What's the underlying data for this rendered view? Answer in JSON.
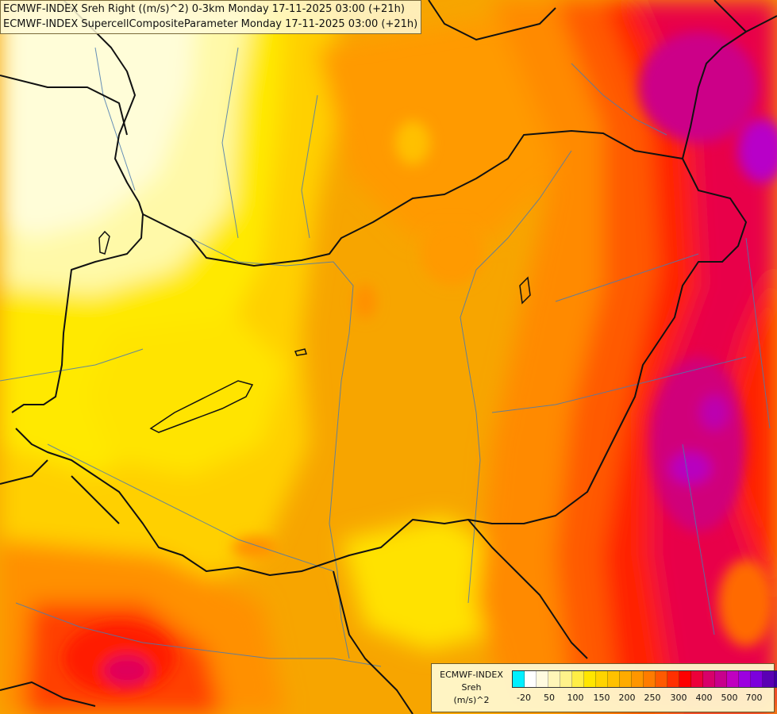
{
  "titles": {
    "line1": "ECMWF-INDEX Sreh Right ((m/s)^2) 0-3km Monday 17-11-2025 03:00 (+21h)",
    "line2": "ECMWF-INDEX SupercellCompositeParameter Monday 17-11-2025 03:00 (+21h)"
  },
  "legend": {
    "model": "ECMWF-INDEX",
    "parameter": "Sreh",
    "unit": "(m/s)^2",
    "colors": [
      "#00f0ff",
      "#ffffff",
      "#fffbe0",
      "#fff6b8",
      "#fff28a",
      "#ffee45",
      "#ffe600",
      "#ffd400",
      "#ffc100",
      "#ffab00",
      "#ff9600",
      "#ff7c00",
      "#ff5a00",
      "#ff3000",
      "#ff0000",
      "#ec003a",
      "#d8006a",
      "#c8008c",
      "#c000c0",
      "#9c00e0",
      "#7c00dc",
      "#5a00b4",
      "#3c00a0",
      "#1e0080"
    ],
    "tick_labels": [
      "-20",
      "50",
      "100",
      "150",
      "200",
      "250",
      "300",
      "400",
      "500",
      "700"
    ]
  }
}
